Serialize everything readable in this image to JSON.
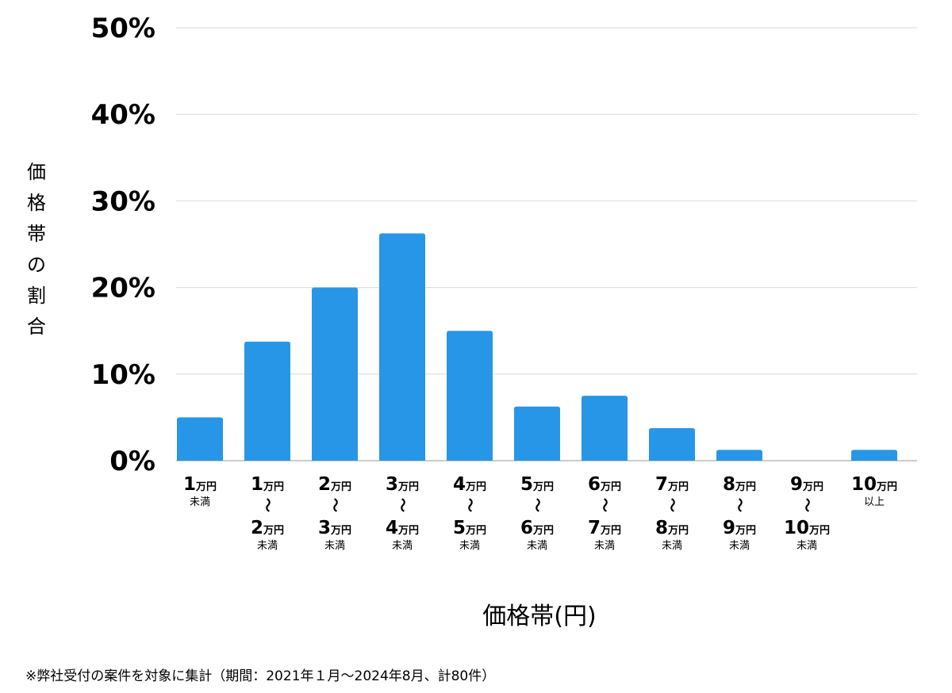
{
  "chart_data": {
    "type": "bar",
    "title": "",
    "ylabel": "価格帯の割合",
    "xlabel": "価格帯(円)",
    "ylim": [
      0,
      50
    ],
    "yticks": [
      "0%",
      "10%",
      "20%",
      "30%",
      "40%",
      "50%"
    ],
    "grid": true,
    "bar_color": "#2896e6",
    "categories": [
      {
        "lines": [
          {
            "num": "1",
            "unit": "万円"
          }
        ],
        "note": "未満"
      },
      {
        "lines": [
          {
            "num": "1",
            "unit": "万円"
          },
          {
            "num": "2",
            "unit": "万円"
          }
        ],
        "sep": "〜",
        "note": "未満"
      },
      {
        "lines": [
          {
            "num": "2",
            "unit": "万円"
          },
          {
            "num": "3",
            "unit": "万円"
          }
        ],
        "sep": "〜",
        "note": "未満"
      },
      {
        "lines": [
          {
            "num": "3",
            "unit": "万円"
          },
          {
            "num": "4",
            "unit": "万円"
          }
        ],
        "sep": "〜",
        "note": "未満"
      },
      {
        "lines": [
          {
            "num": "4",
            "unit": "万円"
          },
          {
            "num": "5",
            "unit": "万円"
          }
        ],
        "sep": "〜",
        "note": "未満"
      },
      {
        "lines": [
          {
            "num": "5",
            "unit": "万円"
          },
          {
            "num": "6",
            "unit": "万円"
          }
        ],
        "sep": "〜",
        "note": "未満"
      },
      {
        "lines": [
          {
            "num": "6",
            "unit": "万円"
          },
          {
            "num": "7",
            "unit": "万円"
          }
        ],
        "sep": "〜",
        "note": "未満"
      },
      {
        "lines": [
          {
            "num": "7",
            "unit": "万円"
          },
          {
            "num": "8",
            "unit": "万円"
          }
        ],
        "sep": "〜",
        "note": "未満"
      },
      {
        "lines": [
          {
            "num": "8",
            "unit": "万円"
          },
          {
            "num": "9",
            "unit": "万円"
          }
        ],
        "sep": "〜",
        "note": "未満"
      },
      {
        "lines": [
          {
            "num": "9",
            "unit": "万円"
          },
          {
            "num": "10",
            "unit": "万円"
          }
        ],
        "sep": "〜",
        "note": "未満"
      },
      {
        "lines": [
          {
            "num": "10",
            "unit": "万円"
          }
        ],
        "note": "以上"
      }
    ],
    "values": [
      5.0,
      13.75,
      20.0,
      26.25,
      15.0,
      6.25,
      7.5,
      3.75,
      1.25,
      0,
      1.25
    ]
  },
  "footnote": "※弊社受付の案件を対象に集計（期間：2021年１月〜2024年8月、計80件）"
}
